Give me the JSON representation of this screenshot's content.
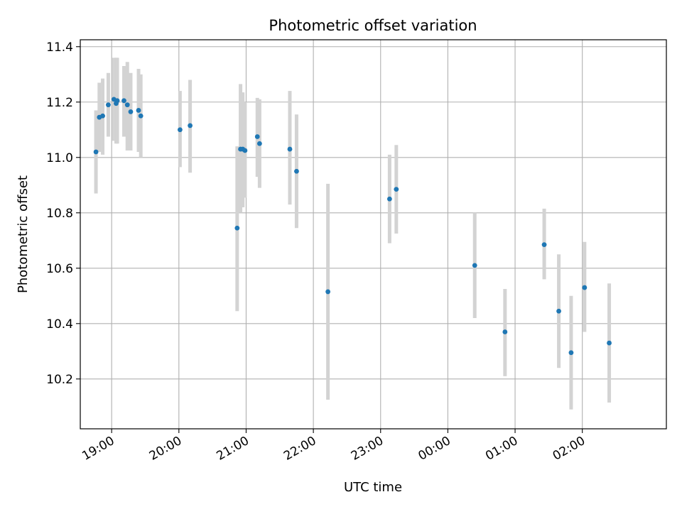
{
  "chart_data": {
    "type": "scatter",
    "title": "Photometric offset variation",
    "xlabel": "UTC time",
    "ylabel": "Photometric offset",
    "x_axis": "time",
    "xlim": [
      "18:32",
      "03:15"
    ],
    "ylim": [
      10.02,
      11.425
    ],
    "xticks": [
      "19:00",
      "20:00",
      "21:00",
      "22:00",
      "23:00",
      "00:00",
      "01:00",
      "02:00"
    ],
    "yticks": [
      10.2,
      10.4,
      10.6,
      10.8,
      11.0,
      11.2,
      11.4
    ],
    "grid": true,
    "colors": {
      "point": "#1f77b4",
      "errorbar": "#d3d3d3",
      "grid": "#b0b0b0"
    },
    "series": [
      {
        "points": [
          {
            "x": "18:46",
            "y": 11.02,
            "lo": 10.87,
            "hi": 11.17
          },
          {
            "x": "18:49",
            "y": 11.145,
            "lo": 11.02,
            "hi": 11.27
          },
          {
            "x": "18:52",
            "y": 11.15,
            "lo": 11.01,
            "hi": 11.285
          },
          {
            "x": "18:57",
            "y": 11.19,
            "lo": 11.075,
            "hi": 11.305
          },
          {
            "x": "19:02",
            "y": 11.21,
            "lo": 11.06,
            "hi": 11.36
          },
          {
            "x": "19:04",
            "y": 11.195,
            "lo": 11.05,
            "hi": 11.36
          },
          {
            "x": "19:05",
            "y": 11.205,
            "lo": 11.05,
            "hi": 11.36
          },
          {
            "x": "19:11",
            "y": 11.205,
            "lo": 11.075,
            "hi": 11.33
          },
          {
            "x": "19:14",
            "y": 11.19,
            "lo": 11.025,
            "hi": 11.345
          },
          {
            "x": "19:17",
            "y": 11.165,
            "lo": 11.025,
            "hi": 11.305
          },
          {
            "x": "19:24",
            "y": 11.17,
            "lo": 11.02,
            "hi": 11.32
          },
          {
            "x": "19:26",
            "y": 11.15,
            "lo": 11.0,
            "hi": 11.3
          },
          {
            "x": "20:01",
            "y": 11.1,
            "lo": 10.965,
            "hi": 11.24
          },
          {
            "x": "20:10",
            "y": 11.115,
            "lo": 10.945,
            "hi": 11.28
          },
          {
            "x": "20:52",
            "y": 10.745,
            "lo": 10.445,
            "hi": 11.04
          },
          {
            "x": "20:55",
            "y": 11.03,
            "lo": 10.8,
            "hi": 11.265
          },
          {
            "x": "20:57",
            "y": 11.03,
            "lo": 10.82,
            "hi": 11.235
          },
          {
            "x": "20:59",
            "y": 11.025,
            "lo": 10.855,
            "hi": 11.2
          },
          {
            "x": "21:10",
            "y": 11.075,
            "lo": 10.93,
            "hi": 11.215
          },
          {
            "x": "21:12",
            "y": 11.05,
            "lo": 10.89,
            "hi": 11.21
          },
          {
            "x": "21:39",
            "y": 11.03,
            "lo": 10.83,
            "hi": 11.24
          },
          {
            "x": "21:45",
            "y": 10.95,
            "lo": 10.745,
            "hi": 11.155
          },
          {
            "x": "22:13",
            "y": 10.515,
            "lo": 10.125,
            "hi": 10.905
          },
          {
            "x": "23:08",
            "y": 10.85,
            "lo": 10.69,
            "hi": 11.01
          },
          {
            "x": "23:14",
            "y": 10.885,
            "lo": 10.725,
            "hi": 11.045
          },
          {
            "x": "00:24",
            "y": 10.61,
            "lo": 10.42,
            "hi": 10.8
          },
          {
            "x": "00:51",
            "y": 10.37,
            "lo": 10.21,
            "hi": 10.525
          },
          {
            "x": "01:26",
            "y": 10.685,
            "lo": 10.56,
            "hi": 10.815
          },
          {
            "x": "01:39",
            "y": 10.445,
            "lo": 10.24,
            "hi": 10.65
          },
          {
            "x": "01:50",
            "y": 10.295,
            "lo": 10.09,
            "hi": 10.5
          },
          {
            "x": "02:02",
            "y": 10.53,
            "lo": 10.37,
            "hi": 10.695
          },
          {
            "x": "02:24",
            "y": 10.33,
            "lo": 10.115,
            "hi": 10.545
          }
        ]
      }
    ]
  }
}
